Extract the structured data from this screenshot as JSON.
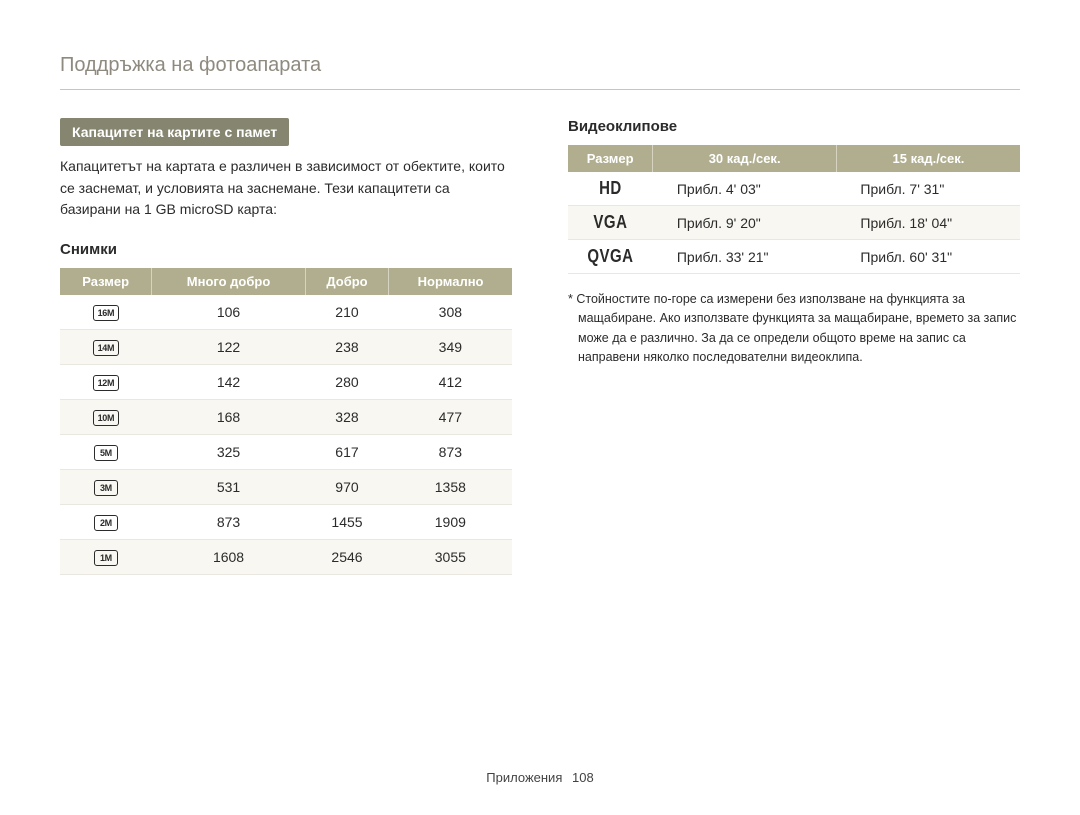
{
  "header": {
    "title": "Поддръжка на фотоапарата"
  },
  "left": {
    "badge": "Капацитет на картите с памет",
    "intro": "Капацитетът на картата е различен в зависимост от обектите, които се заснемат, и условията на заснемане. Тези капацитети са базирани на 1 GB microSD карта:",
    "photos": {
      "subhead": "Снимки",
      "columns": [
        "Размер",
        "Много добро",
        "Добро",
        "Нормално"
      ],
      "rows": [
        {
          "size": "16M",
          "vals": [
            "106",
            "210",
            "308"
          ]
        },
        {
          "size": "14M",
          "vals": [
            "122",
            "238",
            "349"
          ]
        },
        {
          "size": "12M",
          "vals": [
            "142",
            "280",
            "412"
          ]
        },
        {
          "size": "10M",
          "vals": [
            "168",
            "328",
            "477"
          ]
        },
        {
          "size": "5M",
          "vals": [
            "325",
            "617",
            "873"
          ]
        },
        {
          "size": "3M",
          "vals": [
            "531",
            "970",
            "1358"
          ]
        },
        {
          "size": "2M",
          "vals": [
            "873",
            "1455",
            "1909"
          ]
        },
        {
          "size": "1M",
          "vals": [
            "1608",
            "2546",
            "3055"
          ]
        }
      ]
    }
  },
  "right": {
    "videos": {
      "subhead": "Видеоклипове",
      "columns": [
        "Размер",
        "30 кад./сек.",
        "15 кад./сек."
      ],
      "rows": [
        {
          "size": "HD",
          "vals": [
            "Прибл. 4' 03\"",
            "Прибл. 7' 31\""
          ]
        },
        {
          "size": "VGA",
          "vals": [
            "Прибл. 9' 20\"",
            "Прибл. 18' 04\""
          ]
        },
        {
          "size": "QVGA",
          "vals": [
            "Прибл. 33' 21\"",
            "Прибл. 60' 31\""
          ]
        }
      ]
    },
    "footnote": "* Стойностите по-горе са измерени без използване на функцията за мащабиране. Ако използвате функцията за мащабиране, времето за запис може да е различно. За да се определи общото време на запис са направени няколко последователни видеоклипа."
  },
  "footer": {
    "label": "Приложения",
    "page": "108"
  },
  "style": {
    "header_color": "#8f8a7f",
    "badge_bg": "#86856f",
    "thead_bg": "#b0ae8f",
    "row_alt_bg": "#f8f7f2",
    "border_color": "#e9e7df",
    "text_color": "#2b2b2b"
  }
}
